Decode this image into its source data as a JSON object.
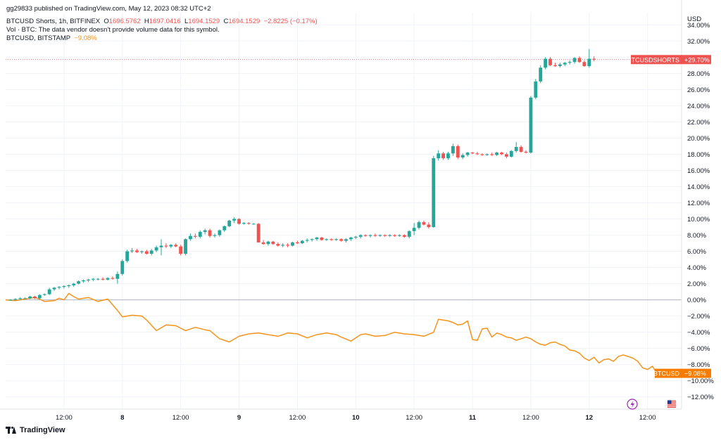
{
  "header": {
    "published": "gg29833 published on TradingView.com, May 12, 2023 08:32 UTC+2",
    "symbol_line": "BTCUSD Shorts, 1h, BITFINEX",
    "o_key": "O",
    "o_val": "1696.5762",
    "h_key": "H",
    "h_val": "1697.0416",
    "l_key": "L",
    "l_val": "1694.1529",
    "c_key": "C",
    "c_val": "1694.1529",
    "change": "−2.8225 (−0.17%)",
    "vol_line": "Vol · BTC: The data vendor doesn't provide volume data for this symbol.",
    "compare_symbol": "BTCUSD, BITSTAMP",
    "compare_change": "−9.08%"
  },
  "axis_unit": "USD",
  "logo_text": "TradingView",
  "icons": [
    "lightning-icon",
    "flag-icon",
    "tradingview-logo-icon"
  ],
  "colors": {
    "up": "#26a69a",
    "down": "#ef5350",
    "compare_line": "#f7931a",
    "label_red": "#ef5350",
    "label_orange": "#f57c00"
  },
  "chart_data": {
    "type": "candlestick+line",
    "ylim": [
      -13.5,
      35.5
    ],
    "y_scale": "percent",
    "y_ticks": [
      "34.00%",
      "32.00%",
      "30.00%",
      "28.00%",
      "26.00%",
      "24.00%",
      "22.00%",
      "20.00%",
      "18.00%",
      "16.00%",
      "14.00%",
      "12.00%",
      "10.00%",
      "8.00%",
      "6.00%",
      "4.00%",
      "2.00%",
      "0.00%",
      "−2.00%",
      "−4.00%",
      "−6.00%",
      "−8.00%",
      "−10.00%",
      "−12.00%"
    ],
    "y_tick_values": [
      34,
      32,
      30,
      28,
      26,
      24,
      22,
      20,
      18,
      16,
      14,
      12,
      10,
      8,
      6,
      4,
      2,
      0,
      -2,
      -4,
      -6,
      -8,
      -10,
      -12
    ],
    "x_range_hours": [
      0,
      139
    ],
    "x_ticks": [
      {
        "label": "12:00",
        "hour": 12,
        "bold": false
      },
      {
        "label": "8",
        "hour": 24,
        "bold": true
      },
      {
        "label": "12:00",
        "hour": 36,
        "bold": false
      },
      {
        "label": "9",
        "hour": 48,
        "bold": true
      },
      {
        "label": "12:00",
        "hour": 60,
        "bold": false
      },
      {
        "label": "10",
        "hour": 72,
        "bold": true
      },
      {
        "label": "12:00",
        "hour": 84,
        "bold": false
      },
      {
        "label": "11",
        "hour": 96,
        "bold": true
      },
      {
        "label": "12:00",
        "hour": 108,
        "bold": false
      },
      {
        "label": "12",
        "hour": 120,
        "bold": true
      },
      {
        "label": "12:00",
        "hour": 132,
        "bold": false
      }
    ],
    "candle_series": {
      "name": "BTCUSD Shorts",
      "last_label": "BTCUSDSHORTS",
      "last_value_label": "+29.70%",
      "last_value": 29.7,
      "ohlc": [
        [
          1,
          0.0,
          0.1,
          -0.1,
          0.0
        ],
        [
          2,
          0.0,
          0.2,
          -0.1,
          0.1
        ],
        [
          3,
          0.1,
          0.3,
          0.0,
          0.2
        ],
        [
          4,
          0.2,
          0.3,
          0.1,
          0.2
        ],
        [
          5,
          0.2,
          0.5,
          0.1,
          0.4
        ],
        [
          6,
          0.4,
          0.5,
          0.1,
          0.2
        ],
        [
          7,
          0.2,
          0.7,
          0.1,
          0.6
        ],
        [
          8,
          0.6,
          0.8,
          0.5,
          0.7
        ],
        [
          9,
          0.7,
          1.5,
          0.6,
          1.3
        ],
        [
          10,
          1.3,
          1.6,
          1.1,
          1.5
        ],
        [
          11,
          1.5,
          1.7,
          1.3,
          1.6
        ],
        [
          12,
          1.6,
          1.8,
          1.4,
          1.7
        ],
        [
          13,
          1.7,
          1.9,
          1.5,
          1.8
        ],
        [
          14,
          1.8,
          2.1,
          1.6,
          2.0
        ],
        [
          15,
          2.0,
          2.4,
          1.9,
          2.3
        ],
        [
          16,
          2.3,
          2.5,
          2.1,
          2.4
        ],
        [
          17,
          2.4,
          2.6,
          2.2,
          2.5
        ],
        [
          18,
          2.5,
          2.7,
          2.3,
          2.6
        ],
        [
          19,
          2.6,
          2.7,
          2.4,
          2.6
        ],
        [
          20,
          2.6,
          2.8,
          2.4,
          2.5
        ],
        [
          21,
          2.5,
          2.8,
          2.4,
          2.7
        ],
        [
          22,
          2.7,
          2.9,
          2.5,
          2.6
        ],
        [
          23,
          2.6,
          3.5,
          2.0,
          3.2
        ],
        [
          24,
          3.2,
          5.0,
          3.0,
          4.8
        ],
        [
          25,
          4.8,
          6.2,
          4.6,
          6.0
        ],
        [
          26,
          6.0,
          6.4,
          5.8,
          6.1
        ],
        [
          27,
          6.1,
          6.3,
          5.8,
          5.9
        ],
        [
          28,
          5.9,
          6.1,
          5.7,
          6.0
        ],
        [
          29,
          6.0,
          6.2,
          5.6,
          5.7
        ],
        [
          30,
          5.7,
          6.3,
          5.5,
          6.1
        ],
        [
          31,
          6.1,
          6.7,
          5.9,
          6.5
        ],
        [
          32,
          6.5,
          7.5,
          5.5,
          6.7
        ],
        [
          33,
          6.7,
          7.0,
          6.4,
          6.6
        ],
        [
          34,
          6.6,
          6.9,
          6.4,
          6.8
        ],
        [
          35,
          6.8,
          7.0,
          6.5,
          6.6
        ],
        [
          36,
          6.6,
          6.8,
          5.5,
          5.7
        ],
        [
          37,
          5.7,
          7.6,
          5.5,
          7.5
        ],
        [
          38,
          7.5,
          8.2,
          7.3,
          7.9
        ],
        [
          39,
          7.9,
          8.2,
          7.6,
          7.8
        ],
        [
          40,
          7.8,
          8.6,
          7.6,
          8.4
        ],
        [
          41,
          8.4,
          8.8,
          8.1,
          8.6
        ],
        [
          42,
          8.6,
          8.8,
          7.7,
          7.9
        ],
        [
          43,
          7.9,
          8.2,
          7.7,
          8.0
        ],
        [
          44,
          8.0,
          8.7,
          7.8,
          8.6
        ],
        [
          45,
          8.6,
          9.2,
          8.4,
          9.1
        ],
        [
          46,
          9.1,
          9.9,
          9.0,
          9.8
        ],
        [
          47,
          9.8,
          10.2,
          9.5,
          10.0
        ],
        [
          48,
          10.0,
          10.1,
          9.3,
          9.4
        ],
        [
          49,
          9.4,
          9.6,
          9.3,
          9.5
        ],
        [
          50,
          9.5,
          9.6,
          9.3,
          9.4
        ],
        [
          51,
          9.4,
          9.5,
          9.3,
          9.4
        ],
        [
          52,
          9.4,
          9.5,
          7.1,
          7.1
        ],
        [
          53,
          7.1,
          7.4,
          6.8,
          6.9
        ],
        [
          54,
          6.9,
          7.3,
          6.7,
          7.2
        ],
        [
          55,
          7.2,
          7.3,
          6.8,
          6.9
        ],
        [
          56,
          6.9,
          7.1,
          6.6,
          6.7
        ],
        [
          57,
          6.7,
          7.0,
          6.5,
          6.8
        ],
        [
          58,
          6.8,
          7.0,
          6.5,
          6.7
        ],
        [
          59,
          6.7,
          7.2,
          6.6,
          7.1
        ],
        [
          60,
          7.1,
          7.3,
          6.9,
          7.0
        ],
        [
          61,
          7.0,
          7.4,
          6.9,
          7.3
        ],
        [
          62,
          7.3,
          7.6,
          7.1,
          7.4
        ],
        [
          63,
          7.4,
          7.6,
          7.2,
          7.5
        ],
        [
          64,
          7.5,
          7.8,
          7.3,
          7.7
        ],
        [
          65,
          7.7,
          7.8,
          7.3,
          7.4
        ],
        [
          66,
          7.4,
          7.6,
          7.3,
          7.5
        ],
        [
          67,
          7.5,
          7.6,
          7.3,
          7.4
        ],
        [
          68,
          7.4,
          7.6,
          7.3,
          7.5
        ],
        [
          69,
          7.5,
          7.6,
          7.2,
          7.3
        ],
        [
          70,
          7.3,
          7.6,
          7.1,
          7.5
        ],
        [
          71,
          7.5,
          7.8,
          7.3,
          7.7
        ],
        [
          72,
          7.7,
          7.9,
          7.5,
          7.8
        ],
        [
          73,
          7.8,
          8.1,
          7.6,
          8.0
        ],
        [
          74,
          8.0,
          8.1,
          7.8,
          7.9
        ],
        [
          75,
          7.9,
          8.1,
          7.7,
          8.0
        ],
        [
          76,
          8.0,
          8.2,
          7.8,
          7.9
        ],
        [
          77,
          7.9,
          8.1,
          7.8,
          8.0
        ],
        [
          78,
          8.0,
          8.1,
          7.8,
          7.9
        ],
        [
          79,
          7.9,
          8.1,
          7.8,
          8.0
        ],
        [
          80,
          8.0,
          8.1,
          7.8,
          7.9
        ],
        [
          81,
          7.9,
          8.1,
          7.8,
          8.0
        ],
        [
          82,
          8.0,
          8.1,
          7.7,
          7.8
        ],
        [
          83,
          7.8,
          8.6,
          7.6,
          8.5
        ],
        [
          84,
          8.5,
          9.5,
          8.0,
          8.9
        ],
        [
          85,
          8.9,
          9.8,
          8.7,
          9.6
        ],
        [
          86,
          9.6,
          9.8,
          9.2,
          9.3
        ],
        [
          87,
          9.3,
          9.6,
          8.8,
          9.0
        ],
        [
          88,
          9.0,
          17.8,
          8.9,
          17.5
        ],
        [
          89,
          17.5,
          18.5,
          17.2,
          18.1
        ],
        [
          90,
          18.1,
          18.3,
          17.3,
          17.5
        ],
        [
          91,
          17.5,
          18.3,
          17.3,
          18.1
        ],
        [
          92,
          18.1,
          19.3,
          17.8,
          19.0
        ],
        [
          93,
          19.0,
          19.2,
          17.4,
          17.6
        ],
        [
          94,
          17.6,
          18.1,
          17.4,
          17.9
        ],
        [
          95,
          17.9,
          18.3,
          17.7,
          18.2
        ],
        [
          96,
          18.2,
          18.3,
          18.0,
          18.1
        ],
        [
          97,
          18.1,
          18.3,
          17.9,
          18.0
        ],
        [
          98,
          18.0,
          18.1,
          17.8,
          17.9
        ],
        [
          99,
          17.9,
          18.1,
          17.8,
          18.0
        ],
        [
          100,
          18.0,
          18.2,
          17.8,
          17.9
        ],
        [
          101,
          17.9,
          18.3,
          17.8,
          18.2
        ],
        [
          102,
          18.2,
          18.3,
          17.9,
          18.0
        ],
        [
          103,
          18.0,
          18.2,
          17.5,
          17.7
        ],
        [
          104,
          17.7,
          18.5,
          17.6,
          18.4
        ],
        [
          105,
          18.4,
          19.5,
          18.2,
          18.9
        ],
        [
          106,
          18.9,
          19.1,
          18.2,
          18.3
        ],
        [
          107,
          18.3,
          18.5,
          18.1,
          18.2
        ],
        [
          108,
          18.2,
          25.2,
          18.1,
          25.0
        ],
        [
          109,
          25.0,
          27.3,
          24.8,
          27.0
        ],
        [
          110,
          27.0,
          29.0,
          26.8,
          28.7
        ],
        [
          111,
          28.7,
          30.0,
          28.5,
          29.8
        ],
        [
          112,
          29.8,
          30.0,
          28.9,
          29.0
        ],
        [
          113,
          29.0,
          29.3,
          28.8,
          28.9
        ],
        [
          114,
          28.9,
          29.3,
          28.7,
          29.1
        ],
        [
          115,
          29.1,
          29.4,
          28.9,
          29.3
        ],
        [
          116,
          29.3,
          29.6,
          29.1,
          29.4
        ],
        [
          117,
          29.4,
          30.0,
          29.2,
          29.9
        ],
        [
          118,
          29.9,
          30.1,
          29.3,
          29.4
        ],
        [
          119,
          29.4,
          29.6,
          28.8,
          28.9
        ],
        [
          120,
          28.9,
          31.0,
          28.7,
          29.8
        ],
        [
          121,
          29.8,
          30.1,
          29.5,
          29.7
        ]
      ]
    },
    "line_series": {
      "name": "BTCUSD",
      "last_label": "BTCUSD",
      "last_value_label": "−9.08%",
      "last_value": -9.08,
      "points": [
        [
          0,
          0.0
        ],
        [
          2,
          -0.1
        ],
        [
          4,
          0.1
        ],
        [
          6,
          0.3
        ],
        [
          7,
          0.1
        ],
        [
          8,
          -0.2
        ],
        [
          10,
          -0.1
        ],
        [
          11,
          0.2
        ],
        [
          12,
          0.0
        ],
        [
          13,
          0.8
        ],
        [
          14,
          0.4
        ],
        [
          15,
          0.1
        ],
        [
          17,
          0.3
        ],
        [
          19,
          -0.2
        ],
        [
          21,
          0.1
        ],
        [
          23,
          -1.3
        ],
        [
          24,
          -2.1
        ],
        [
          26,
          -1.9
        ],
        [
          28,
          -2.0
        ],
        [
          29,
          -2.5
        ],
        [
          31,
          -3.8
        ],
        [
          33,
          -3.1
        ],
        [
          35,
          -3.2
        ],
        [
          37,
          -3.8
        ],
        [
          39,
          -3.4
        ],
        [
          41,
          -3.7
        ],
        [
          42,
          -3.8
        ],
        [
          44,
          -4.8
        ],
        [
          46,
          -5.2
        ],
        [
          48,
          -4.5
        ],
        [
          50,
          -4.2
        ],
        [
          52,
          -4.1
        ],
        [
          54,
          -4.3
        ],
        [
          56,
          -4.5
        ],
        [
          58,
          -4.1
        ],
        [
          60,
          -4.2
        ],
        [
          62,
          -4.7
        ],
        [
          64,
          -4.3
        ],
        [
          66,
          -4.1
        ],
        [
          68,
          -4.3
        ],
        [
          69,
          -4.6
        ],
        [
          71,
          -5.1
        ],
        [
          73,
          -4.3
        ],
        [
          74,
          -4.2
        ],
        [
          76,
          -4.5
        ],
        [
          78,
          -4.4
        ],
        [
          80,
          -4.0
        ],
        [
          82,
          -4.2
        ],
        [
          84,
          -4.3
        ],
        [
          86,
          -4.5
        ],
        [
          88,
          -4.0
        ],
        [
          89,
          -2.4
        ],
        [
          90,
          -2.5
        ],
        [
          91,
          -2.6
        ],
        [
          92,
          -2.8
        ],
        [
          93,
          -3.1
        ],
        [
          94,
          -3.0
        ],
        [
          95,
          -2.6
        ],
        [
          96,
          -4.9
        ],
        [
          97,
          -5.0
        ],
        [
          98,
          -3.6
        ],
        [
          99,
          -3.5
        ],
        [
          100,
          -4.6
        ],
        [
          101,
          -4.1
        ],
        [
          102,
          -4.3
        ],
        [
          103,
          -4.6
        ],
        [
          104,
          -4.7
        ],
        [
          105,
          -5.0
        ],
        [
          106,
          -4.8
        ],
        [
          107,
          -4.6
        ],
        [
          108,
          -4.8
        ],
        [
          109,
          -5.2
        ],
        [
          110,
          -5.5
        ],
        [
          111,
          -5.6
        ],
        [
          112,
          -5.3
        ],
        [
          113,
          -5.2
        ],
        [
          114,
          -5.5
        ],
        [
          115,
          -5.7
        ],
        [
          116,
          -6.2
        ],
        [
          117,
          -6.3
        ],
        [
          118,
          -6.6
        ],
        [
          119,
          -7.2
        ],
        [
          120,
          -7.5
        ],
        [
          121,
          -7.1
        ],
        [
          122,
          -7.8
        ],
        [
          123,
          -7.4
        ],
        [
          124,
          -7.3
        ],
        [
          125,
          -7.6
        ],
        [
          126,
          -7.0
        ],
        [
          127,
          -6.8
        ],
        [
          128,
          -7.0
        ],
        [
          129,
          -7.2
        ],
        [
          130,
          -7.6
        ],
        [
          131,
          -8.4
        ],
        [
          132,
          -8.6
        ],
        [
          133,
          -8.2
        ],
        [
          134,
          -9.2
        ],
        [
          135,
          -9.08
        ]
      ]
    }
  }
}
